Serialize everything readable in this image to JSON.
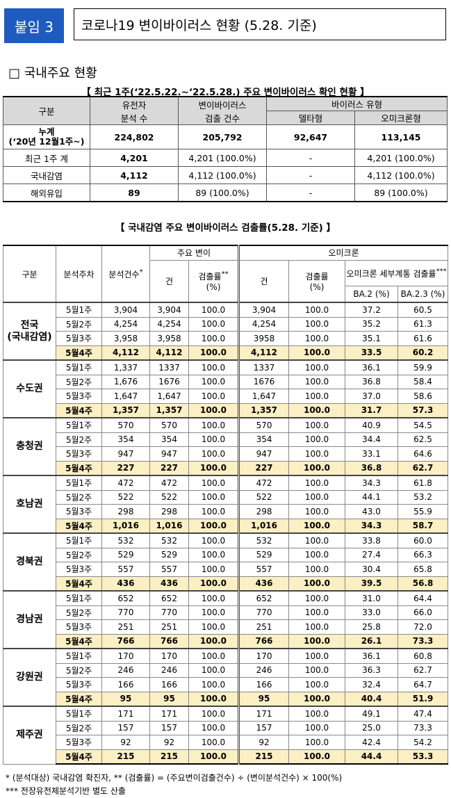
{
  "header": {
    "badge": "붙임 3",
    "title": "코로나19 변이바이러스 현황 (5.28. 기준)"
  },
  "section": {
    "title": "□  국내주요 현황"
  },
  "table1": {
    "title": "【 최근 1주(‘22.5.22.~‘22.5.28.) 주요 변이바이러스 확인 현황 】",
    "headers": {
      "group": "구분",
      "analyzed": "유전자\n분석 수",
      "detected": "변이바이러스\n검출 건수",
      "type": "바이러스 유형",
      "delta": "델타형",
      "omicron": "오미크론형"
    },
    "rows": [
      {
        "label": "누계\n(‘20년 12월1주~)",
        "analyzed": "224,802",
        "detected": "205,792",
        "delta": "92,647",
        "omicron": "113,145"
      },
      {
        "label": "최근 1주 계",
        "analyzed": "4,201",
        "detected": "4,201 (100.0%)",
        "delta": "-",
        "omicron": "4,201 (100.0%)"
      },
      {
        "label": "국내감염",
        "analyzed": "4,112",
        "detected": "4,112 (100.0%)",
        "delta": "-",
        "omicron": "4,112 (100.0%)"
      },
      {
        "label": "해외유입",
        "analyzed": "89",
        "detected": "89 (100.0%)",
        "delta": "-",
        "omicron": "89 (100.0%)"
      }
    ]
  },
  "table2": {
    "title": "【 국내감염 주요 변이바이러스 검출률(5.28. 기준) 】",
    "headers": {
      "group": "구분",
      "week": "분석주차",
      "count": "분석건수",
      "count_sup": "*",
      "major": "주요 변이",
      "omicron": "오미크론",
      "cases": "건",
      "rate": "검출률",
      "rate_sup": "**",
      "rate_unit": "(%)",
      "sublineage": "오미크론 세부계통 검출률",
      "sublineage_sup": "***",
      "ba2": "BA.2 (%)",
      "ba23": "BA.2.3 (%)"
    },
    "regions": [
      {
        "name": "전국\n(국내감염)",
        "rows": [
          [
            "5월1주",
            "3,904",
            "3,904",
            "100.0",
            "3,904",
            "100.0",
            "37.2",
            "60.5"
          ],
          [
            "5월2주",
            "4,254",
            "4,254",
            "100.0",
            "4,254",
            "100.0",
            "35.2",
            "61.3"
          ],
          [
            "5월3주",
            "3,958",
            "3,958",
            "100.0",
            "3958",
            "100.0",
            "35.1",
            "61.6"
          ],
          [
            "5월4주",
            "4,112",
            "4,112",
            "100.0",
            "4,112",
            "100.0",
            "33.5",
            "60.2"
          ]
        ]
      },
      {
        "name": "수도권",
        "rows": [
          [
            "5월1주",
            "1,337",
            "1337",
            "100.0",
            "1337",
            "100.0",
            "36.1",
            "59.9"
          ],
          [
            "5월2주",
            "1,676",
            "1676",
            "100.0",
            "1676",
            "100.0",
            "36.8",
            "58.4"
          ],
          [
            "5월3주",
            "1,647",
            "1,647",
            "100.0",
            "1,647",
            "100.0",
            "37.0",
            "58.6"
          ],
          [
            "5월4주",
            "1,357",
            "1,357",
            "100.0",
            "1,357",
            "100.0",
            "31.7",
            "57.3"
          ]
        ]
      },
      {
        "name": "충청권",
        "rows": [
          [
            "5월1주",
            "570",
            "570",
            "100.0",
            "570",
            "100.0",
            "40.9",
            "54.5"
          ],
          [
            "5월2주",
            "354",
            "354",
            "100.0",
            "354",
            "100.0",
            "34.4",
            "62.5"
          ],
          [
            "5월3주",
            "947",
            "947",
            "100.0",
            "947",
            "100.0",
            "33.1",
            "64.6"
          ],
          [
            "5월4주",
            "227",
            "227",
            "100.0",
            "227",
            "100.0",
            "36.8",
            "62.7"
          ]
        ]
      },
      {
        "name": "호남권",
        "rows": [
          [
            "5월1주",
            "472",
            "472",
            "100.0",
            "472",
            "100.0",
            "34.3",
            "61.8"
          ],
          [
            "5월2주",
            "522",
            "522",
            "100.0",
            "522",
            "100.0",
            "44.1",
            "53.2"
          ],
          [
            "5월3주",
            "298",
            "298",
            "100.0",
            "298",
            "100.0",
            "43.0",
            "55.9"
          ],
          [
            "5월4주",
            "1,016",
            "1,016",
            "100.0",
            "1,016",
            "100.0",
            "34.3",
            "58.7"
          ]
        ]
      },
      {
        "name": "경북권",
        "rows": [
          [
            "5월1주",
            "532",
            "532",
            "100.0",
            "532",
            "100.0",
            "33.8",
            "60.0"
          ],
          [
            "5월2주",
            "529",
            "529",
            "100.0",
            "529",
            "100.0",
            "27.4",
            "66.3"
          ],
          [
            "5월3주",
            "557",
            "557",
            "100.0",
            "557",
            "100.0",
            "30.4",
            "65.8"
          ],
          [
            "5월4주",
            "436",
            "436",
            "100.0",
            "436",
            "100.0",
            "39.5",
            "56.8"
          ]
        ]
      },
      {
        "name": "경남권",
        "rows": [
          [
            "5월1주",
            "652",
            "652",
            "100.0",
            "652",
            "100.0",
            "31.0",
            "64.4"
          ],
          [
            "5월2주",
            "770",
            "770",
            "100.0",
            "770",
            "100.0",
            "33.0",
            "66.0"
          ],
          [
            "5월3주",
            "251",
            "251",
            "100.0",
            "251",
            "100.0",
            "25.8",
            "72.0"
          ],
          [
            "5월4주",
            "766",
            "766",
            "100.0",
            "766",
            "100.0",
            "26.1",
            "73.3"
          ]
        ]
      },
      {
        "name": "강원권",
        "rows": [
          [
            "5월1주",
            "170",
            "170",
            "100.0",
            "170",
            "100.0",
            "36.1",
            "60.8"
          ],
          [
            "5월2주",
            "246",
            "246",
            "100.0",
            "246",
            "100.0",
            "36.3",
            "62.7"
          ],
          [
            "5월3주",
            "166",
            "166",
            "100.0",
            "166",
            "100.0",
            "32.4",
            "64.7"
          ],
          [
            "5월4주",
            "95",
            "95",
            "100.0",
            "95",
            "100.0",
            "40.4",
            "51.9"
          ]
        ]
      },
      {
        "name": "제주권",
        "rows": [
          [
            "5월1주",
            "171",
            "171",
            "100.0",
            "171",
            "100.0",
            "49.1",
            "47.4"
          ],
          [
            "5월2주",
            "157",
            "157",
            "100.0",
            "157",
            "100.0",
            "25.0",
            "73.3"
          ],
          [
            "5월3주",
            "92",
            "92",
            "100.0",
            "92",
            "100.0",
            "42.4",
            "54.2"
          ],
          [
            "5월4주",
            "215",
            "215",
            "100.0",
            "215",
            "100.0",
            "44.4",
            "53.3"
          ]
        ]
      }
    ]
  },
  "footnotes": [
    "* (분석대상) 국내감염 확진자, ** (검출률) = (주요변이검출건수) ÷ (변이분석건수) × 100(%)",
    "*** 전장유전체분석기반 별도 산출"
  ]
}
